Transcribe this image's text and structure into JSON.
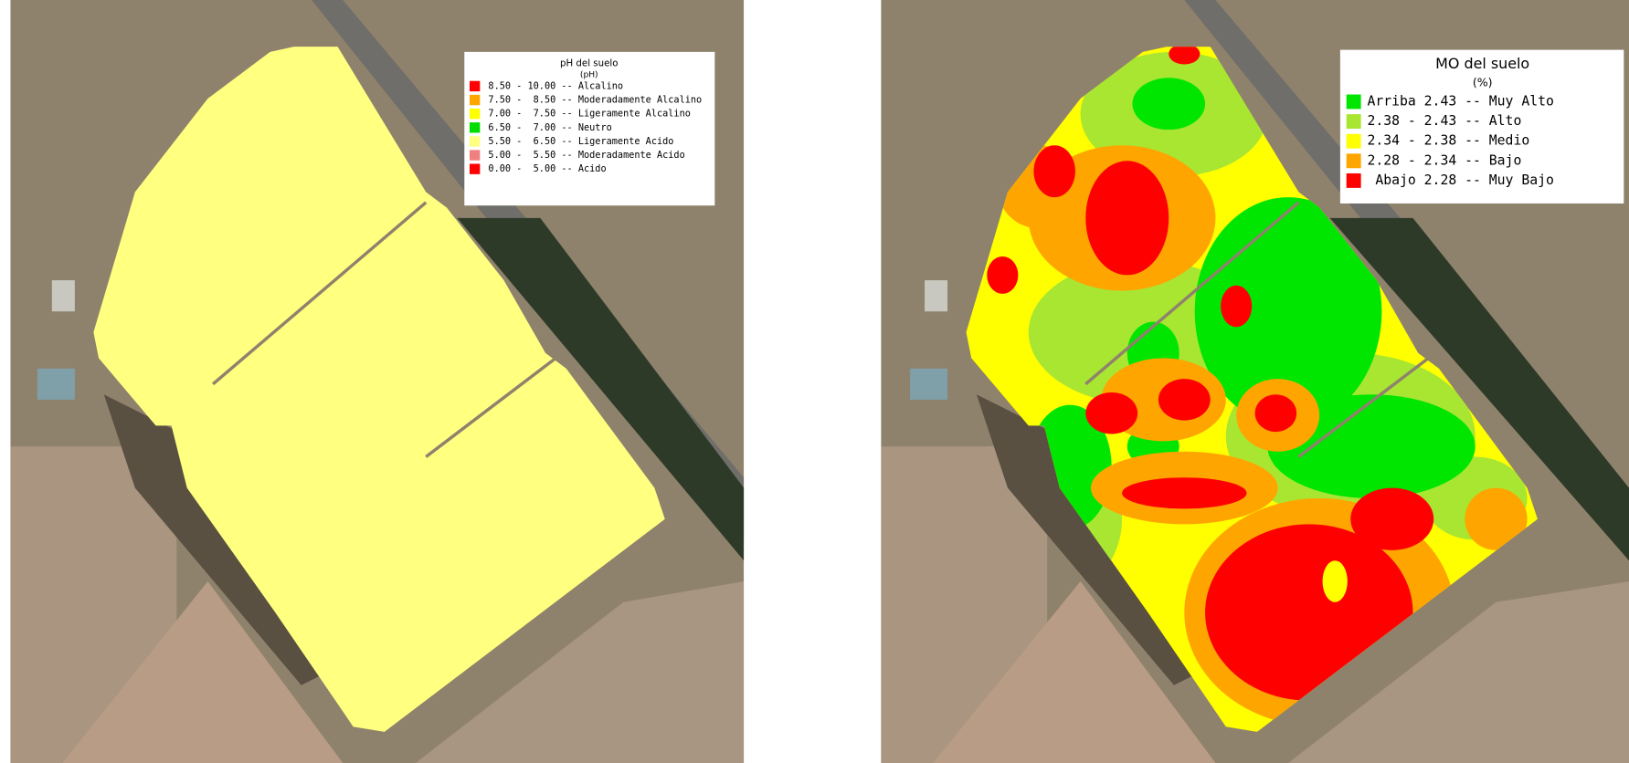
{
  "maps": [
    {
      "legend": {
        "title": "pH del suelo",
        "unit": "(pH)",
        "items": [
          {
            "text": "8.50 - 10.00 -- Alcalino",
            "color": "#ff0000"
          },
          {
            "text": "7.50 -  8.50 -- Moderadamente Alcalino",
            "color": "#ffa500"
          },
          {
            "text": "7.00 -  7.50 -- Ligeramente Alcalino",
            "color": "#ffff00"
          },
          {
            "text": "6.50 -  7.00 -- Neutro",
            "color": "#00dd00"
          },
          {
            "text": "5.50 -  6.50 -- Ligeramente Acido",
            "color": "#ffff80"
          },
          {
            "text": "5.00 -  5.50 -- Moderadamente Acido",
            "color": "#f08080"
          },
          {
            "text": "0.00 -  5.00 -- Acido",
            "color": "#ff0000"
          }
        ]
      }
    },
    {
      "legend": {
        "title": "MO del suelo",
        "unit": "(%)",
        "items": [
          {
            "text": "Arriba 2.43 -- Muy Alto",
            "color": "#00e600"
          },
          {
            "text": "2.38 - 2.43 -- Alto",
            "color": "#a8e632"
          },
          {
            "text": "2.34 - 2.38 -- Medio",
            "color": "#ffff00"
          },
          {
            "text": "2.28 - 2.34 -- Bajo",
            "color": "#ffa500"
          },
          {
            "text": " Abajo 2.28 -- Muy Bajo",
            "color": "#ff0000"
          }
        ]
      }
    }
  ]
}
